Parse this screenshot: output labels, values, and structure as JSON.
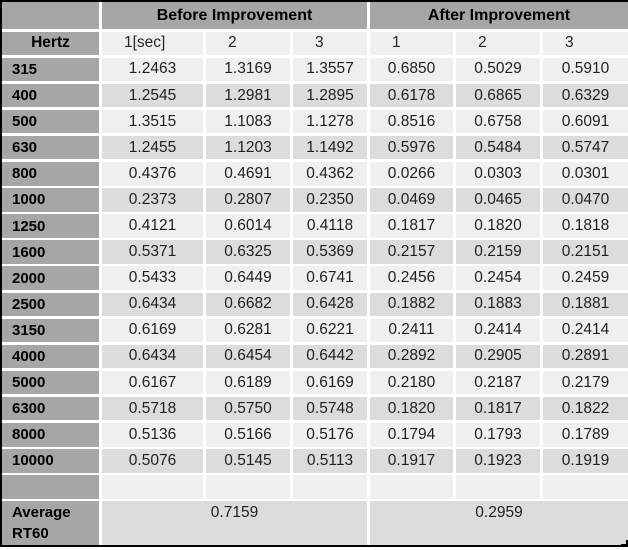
{
  "colors": {
    "header_gray": "#a6a6a6",
    "band_light": "#efefef",
    "band_dark": "#dcdcdc",
    "separator_white": "#ffffff",
    "outer_border": "#000000",
    "text_dark": "#1f1f1f"
  },
  "chart_data": {
    "type": "table",
    "group_headers": {
      "before": "Before Improvement",
      "after": "After Improvement"
    },
    "header": {
      "row_label": "Hertz",
      "measurement_cols": [
        "1[sec]",
        "2",
        "3",
        "1",
        "2",
        "3"
      ]
    },
    "rows": [
      {
        "hertz": "315",
        "values": [
          "1.2463",
          "1.3169",
          "1.3557",
          "0.6850",
          "0.5029",
          "0.5910"
        ]
      },
      {
        "hertz": "400",
        "values": [
          "1.2545",
          "1.2981",
          "1.2895",
          "0.6178",
          "0.6865",
          "0.6329"
        ]
      },
      {
        "hertz": "500",
        "values": [
          "1.3515",
          "1.1083",
          "1.1278",
          "0.8516",
          "0.6758",
          "0.6091"
        ]
      },
      {
        "hertz": "630",
        "values": [
          "1.2455",
          "1.1203",
          "1.1492",
          "0.5976",
          "0.5484",
          "0.5747"
        ]
      },
      {
        "hertz": "800",
        "values": [
          "0.4376",
          "0.4691",
          "0.4362",
          "0.0266",
          "0.0303",
          "0.0301"
        ]
      },
      {
        "hertz": "1000",
        "values": [
          "0.2373",
          "0.2807",
          "0.2350",
          "0.0469",
          "0.0465",
          "0.0470"
        ]
      },
      {
        "hertz": "1250",
        "values": [
          "0.4121",
          "0.6014",
          "0.4118",
          "0.1817",
          "0.1820",
          "0.1818"
        ]
      },
      {
        "hertz": "1600",
        "values": [
          "0.5371",
          "0.6325",
          "0.5369",
          "0.2157",
          "0.2159",
          "0.2151"
        ]
      },
      {
        "hertz": "2000",
        "values": [
          "0.5433",
          "0.6449",
          "0.6741",
          "0.2456",
          "0.2454",
          "0.2459"
        ]
      },
      {
        "hertz": "2500",
        "values": [
          "0.6434",
          "0.6682",
          "0.6428",
          "0.1882",
          "0.1883",
          "0.1881"
        ]
      },
      {
        "hertz": "3150",
        "values": [
          "0.6169",
          "0.6281",
          "0.6221",
          "0.2411",
          "0.2414",
          "0.2414"
        ]
      },
      {
        "hertz": "4000",
        "values": [
          "0.6434",
          "0.6454",
          "0.6442",
          "0.2892",
          "0.2905",
          "0.2891"
        ]
      },
      {
        "hertz": "5000",
        "values": [
          "0.6167",
          "0.6189",
          "0.6169",
          "0.2180",
          "0.2187",
          "0.2179"
        ]
      },
      {
        "hertz": "6300",
        "values": [
          "0.5718",
          "0.5750",
          "0.5748",
          "0.1820",
          "0.1817",
          "0.1822"
        ]
      },
      {
        "hertz": "8000",
        "values": [
          "0.5136",
          "0.5166",
          "0.5176",
          "0.1794",
          "0.1793",
          "0.1789"
        ]
      },
      {
        "hertz": "10000",
        "values": [
          "0.5076",
          "0.5145",
          "0.5113",
          "0.1917",
          "0.1923",
          "0.1919"
        ]
      }
    ],
    "average": {
      "label": "Average RT60",
      "before": "0.7159",
      "after": "0.2959"
    }
  }
}
